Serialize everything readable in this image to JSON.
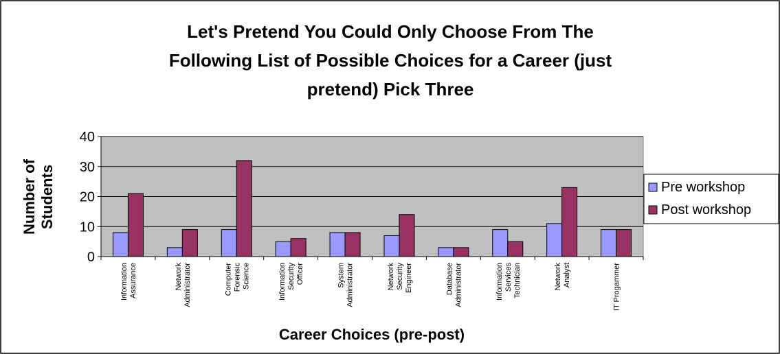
{
  "chart_data": {
    "type": "bar",
    "title_lines": [
      "Let's Pretend You Could Only Choose From The",
      "Following List of Possible Choices for a Career (just",
      "pretend) Pick Three"
    ],
    "xlabel": "Career Choices (pre-post)",
    "ylabel_lines": [
      "Number of",
      "Students"
    ],
    "ylim": [
      0,
      40
    ],
    "yticks": [
      "0",
      "10",
      "20",
      "30",
      "40"
    ],
    "grid": true,
    "legend_position": "right",
    "categories": [
      [
        "Information",
        "Assurance"
      ],
      [
        "Network",
        "Administrator"
      ],
      [
        "Computer",
        "Forensic",
        "Science"
      ],
      [
        "Information",
        "Security",
        "Officer"
      ],
      [
        "System",
        "Administrator"
      ],
      [
        "Network",
        "Security",
        "Engineer"
      ],
      [
        "Database",
        "Administrator"
      ],
      [
        "Information",
        "Services",
        "Technician"
      ],
      [
        "Network",
        "Analyst"
      ],
      [
        "IT Progammer"
      ]
    ],
    "series": [
      {
        "name": "Pre workshop",
        "color": "#9999FF",
        "values": [
          8,
          3,
          9,
          5,
          8,
          7,
          3,
          9,
          11,
          9
        ]
      },
      {
        "name": "Post workshop",
        "color": "#993366",
        "values": [
          21,
          9,
          32,
          6,
          8,
          14,
          3,
          5,
          23,
          9
        ]
      }
    ],
    "plot_background": "#C0C0C0"
  }
}
